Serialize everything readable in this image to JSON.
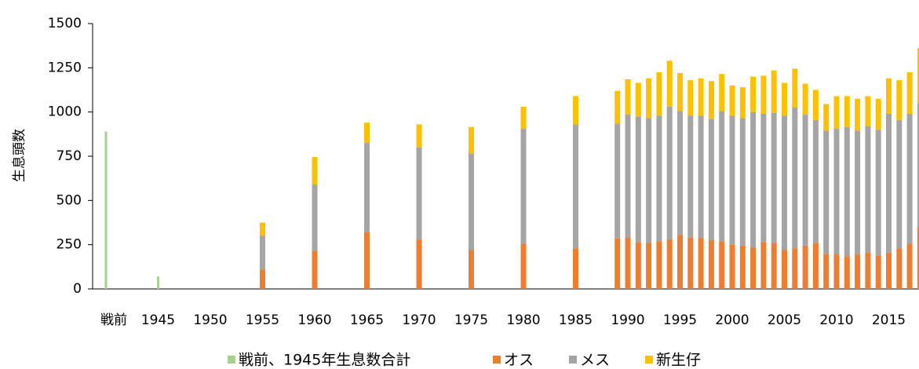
{
  "chart_data": {
    "type": "bar",
    "stacked": true,
    "y_label": "生息頭数",
    "categories": [
      "戦前",
      null,
      null,
      null,
      null,
      "1945",
      null,
      null,
      null,
      null,
      "1950",
      null,
      null,
      null,
      null,
      "1955",
      null,
      null,
      null,
      null,
      "1960",
      null,
      null,
      null,
      null,
      "1965",
      null,
      null,
      null,
      null,
      "1970",
      null,
      null,
      null,
      null,
      "1975",
      null,
      null,
      null,
      null,
      "1980",
      null,
      null,
      null,
      null,
      "1985",
      null,
      null,
      null,
      null,
      "1990",
      null,
      null,
      null,
      null,
      "1995",
      null,
      null,
      null,
      null,
      "2000",
      null,
      null,
      null,
      null,
      "2005",
      null,
      null,
      null,
      null,
      "2010",
      null,
      null,
      null,
      null,
      "2015",
      null,
      null,
      null
    ],
    "series": [
      {
        "name": "戦前、1945年生息数合計",
        "color": "#a9d18e",
        "values": [
          890,
          null,
          null,
          null,
          null,
          70,
          null,
          null,
          null,
          null,
          null,
          null,
          null,
          null,
          null,
          null,
          null,
          null,
          null,
          null,
          null,
          null,
          null,
          null,
          null,
          null,
          null,
          null,
          null,
          null,
          null,
          null,
          null,
          null,
          null,
          null,
          null,
          null,
          null,
          null,
          null,
          null,
          null,
          null,
          null,
          null,
          null,
          null,
          null,
          null,
          null,
          null,
          null,
          null,
          null,
          null,
          null,
          null,
          null,
          null,
          null,
          null,
          null,
          null,
          null,
          null,
          null,
          null,
          null,
          null,
          null,
          null,
          null,
          null,
          null,
          null,
          null,
          null,
          null
        ]
      },
      {
        "name": "オス",
        "color": "#ed7d31",
        "values": [
          null,
          null,
          null,
          null,
          null,
          null,
          null,
          null,
          null,
          null,
          null,
          null,
          null,
          null,
          null,
          110,
          null,
          null,
          null,
          null,
          215,
          null,
          null,
          null,
          null,
          320,
          null,
          null,
          null,
          null,
          280,
          null,
          null,
          null,
          null,
          220,
          null,
          null,
          null,
          null,
          255,
          null,
          null,
          null,
          null,
          230,
          null,
          null,
          null,
          285,
          290,
          265,
          260,
          270,
          280,
          305,
          290,
          290,
          275,
          270,
          250,
          245,
          235,
          265,
          260,
          220,
          230,
          245,
          260,
          195,
          195,
          185,
          195,
          205,
          190,
          205,
          230,
          255,
          350
        ]
      },
      {
        "name": "メス",
        "color": "#a5a5a5",
        "values": [
          null,
          null,
          null,
          null,
          null,
          null,
          null,
          null,
          null,
          null,
          null,
          null,
          null,
          null,
          null,
          190,
          null,
          null,
          null,
          null,
          375,
          null,
          null,
          null,
          null,
          505,
          null,
          null,
          null,
          null,
          520,
          null,
          null,
          null,
          null,
          545,
          null,
          null,
          null,
          null,
          650,
          null,
          null,
          null,
          null,
          700,
          null,
          null,
          null,
          650,
          695,
          710,
          705,
          710,
          750,
          700,
          690,
          690,
          685,
          735,
          730,
          720,
          765,
          725,
          735,
          760,
          795,
          740,
          695,
          700,
          710,
          730,
          700,
          715,
          710,
          785,
          725,
          735,
          700
        ]
      },
      {
        "name": "新生仔",
        "color": "#ffc000",
        "values": [
          null,
          null,
          null,
          null,
          null,
          null,
          null,
          null,
          null,
          null,
          null,
          null,
          null,
          null,
          null,
          75,
          null,
          null,
          null,
          null,
          155,
          null,
          null,
          null,
          null,
          115,
          null,
          null,
          null,
          null,
          130,
          null,
          null,
          null,
          null,
          150,
          null,
          null,
          null,
          null,
          125,
          null,
          null,
          null,
          null,
          160,
          null,
          null,
          null,
          185,
          200,
          190,
          225,
          245,
          260,
          215,
          200,
          210,
          215,
          210,
          170,
          175,
          200,
          215,
          240,
          185,
          220,
          175,
          170,
          150,
          185,
          175,
          180,
          170,
          175,
          200,
          225,
          235,
          310
        ]
      }
    ],
    "ylim": [
      0,
      1500
    ],
    "yticks": [
      0,
      250,
      500,
      750,
      1000,
      1250,
      1500
    ],
    "legend": "bottom"
  }
}
